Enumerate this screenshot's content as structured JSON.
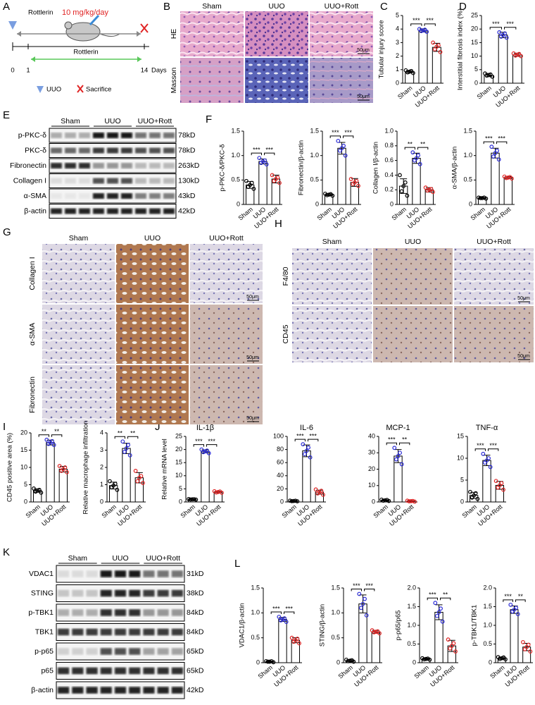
{
  "panels": [
    "A",
    "B",
    "C",
    "D",
    "E",
    "F",
    "G",
    "H",
    "I",
    "J",
    "K",
    "L"
  ],
  "schematic": {
    "drug": "Rottlerin",
    "dose": "10 mg/kg/day",
    "days": [
      "0",
      "1",
      "14"
    ],
    "unit": "Days",
    "bar_label": "Rottlerin",
    "legend": [
      "UUO",
      "Sacrifice"
    ]
  },
  "histology_B": {
    "columns": [
      "Sham",
      "UUO",
      "UUO+Rott"
    ],
    "rows": [
      "HE",
      "Masson"
    ],
    "scale": "50μm"
  },
  "histology_G": {
    "columns": [
      "Sham",
      "UUO",
      "UUO+Rott"
    ],
    "rows": [
      "Collagen I",
      "α-SMA",
      "Fibronectin"
    ],
    "scale": "50μm"
  },
  "histology_H": {
    "columns": [
      "Sham",
      "UUO",
      "UUO+Rott"
    ],
    "rows": [
      "F4/80",
      "CD45"
    ],
    "scale": "50μm"
  },
  "blot_E": {
    "groups": [
      "Sham",
      "UUO",
      "UUO+Rott"
    ],
    "rows": [
      "p-PKC-δ",
      "PKC-δ",
      "Fibronectin",
      "Collagen I",
      "α-SMA",
      "β-actin"
    ],
    "sizes": [
      "78kD",
      "78kD",
      "263kD",
      "130kD",
      "43kD",
      "42kD"
    ]
  },
  "blot_K": {
    "groups": [
      "Sham",
      "UUO",
      "UUO+Rott"
    ],
    "rows": [
      "VDAC1",
      "STING",
      "p-TBK1",
      "TBK1",
      "p-p65",
      "p65",
      "β-actin"
    ],
    "sizes": [
      "31kD",
      "38kD",
      "84kD",
      "84kD",
      "65kD",
      "65kD",
      "42kD"
    ]
  },
  "colors": [
    "#000000",
    "#2b2bd6",
    "#e02424"
  ],
  "chart_data": [
    {
      "type": "bar",
      "ylabel": "Tubular injury score",
      "categories": [
        "Sham",
        "UUO",
        "UUO+Rott"
      ],
      "values": [
        0.85,
        3.9,
        2.65
      ],
      "errors": [
        0.08,
        0.12,
        0.3
      ],
      "points": [
        [
          0.75,
          0.8,
          0.85,
          0.9,
          0.95
        ],
        [
          3.8,
          3.85,
          3.9,
          3.95,
          4.0
        ],
        [
          2.3,
          2.5,
          2.7,
          2.8,
          3.0
        ]
      ],
      "ylim": [
        0,
        5
      ],
      "yticks": [
        0,
        1,
        2,
        3,
        4,
        5
      ],
      "sig": [
        "***",
        "***"
      ]
    },
    {
      "type": "bar",
      "ylabel": "Interstitial fibrosis index (%)",
      "categories": [
        "Sham",
        "UUO",
        "UUO+Rott"
      ],
      "values": [
        3,
        17.8,
        10.5
      ],
      "errors": [
        0.6,
        1,
        0.6
      ],
      "points": [
        [
          2.4,
          2.8,
          3,
          3.2,
          3.6
        ],
        [
          16.8,
          17.2,
          17.8,
          18.4,
          18.8
        ],
        [
          10,
          10.2,
          10.5,
          10.8,
          11
        ]
      ],
      "ylim": [
        0,
        25
      ],
      "yticks": [
        0,
        5,
        10,
        15,
        20,
        25
      ],
      "sig": [
        "***",
        "***"
      ]
    },
    {
      "type": "bar",
      "ylabel": "p-PKC-δ/PKC-δ",
      "categories": [
        "Sham",
        "UUO",
        "UUO+Rott"
      ],
      "values": [
        0.4,
        0.88,
        0.52
      ],
      "errors": [
        0.07,
        0.05,
        0.08
      ],
      "points": [
        [
          0.32,
          0.36,
          0.4,
          0.44,
          0.48
        ],
        [
          0.82,
          0.85,
          0.88,
          0.9,
          0.95
        ],
        [
          0.44,
          0.48,
          0.52,
          0.55,
          0.6
        ]
      ],
      "ylim": [
        0,
        1.5
      ],
      "yticks": [
        0,
        0.5,
        {
          "value": 1,
          "label": "1.0"
        },
        1.5
      ],
      "sig": [
        "***",
        "***"
      ]
    },
    {
      "type": "bar",
      "ylabel": "Fibronectin/β-actin",
      "categories": [
        "Sham",
        "UUO",
        "UUO+Rott"
      ],
      "values": [
        0.2,
        1.15,
        0.45
      ],
      "errors": [
        0.02,
        0.12,
        0.08
      ],
      "points": [
        [
          0.18,
          0.19,
          0.2,
          0.21,
          0.22
        ],
        [
          1.0,
          1.1,
          1.15,
          1.2,
          1.3
        ],
        [
          0.38,
          0.42,
          0.45,
          0.48,
          0.52
        ]
      ],
      "ylim": [
        0,
        1.5
      ],
      "yticks": [
        0,
        0.5,
        {
          "value": 1,
          "label": "1.0"
        },
        1.5
      ],
      "sig": [
        "***",
        "***"
      ]
    },
    {
      "type": "bar",
      "ylabel": "Collagen I/β-actin",
      "categories": [
        "Sham",
        "UUO",
        "UUO+Rott"
      ],
      "values": [
        0.25,
        0.63,
        0.2
      ],
      "errors": [
        0.1,
        0.07,
        0.03
      ],
      "points": [
        [
          0.12,
          0.18,
          0.25,
          0.3,
          0.4
        ],
        [
          0.55,
          0.6,
          0.63,
          0.67,
          0.71
        ],
        [
          0.17,
          0.19,
          0.2,
          0.21,
          0.23
        ]
      ],
      "ylim": [
        0,
        1
      ],
      "yticks": [
        0,
        0.2,
        0.4,
        0.6,
        0.8,
        {
          "value": 1,
          "label": "1.0"
        }
      ],
      "sig": [
        "**",
        "**"
      ]
    },
    {
      "type": "bar",
      "ylabel": "α-SMA/β-actin",
      "categories": [
        "Sham",
        "UUO",
        "UUO+Rott"
      ],
      "values": [
        0.13,
        1.05,
        0.55
      ],
      "errors": [
        0.01,
        0.1,
        0.02
      ],
      "points": [
        [
          0.12,
          0.13,
          0.13,
          0.14,
          0.14
        ],
        [
          0.92,
          0.98,
          1.05,
          1.1,
          1.18
        ],
        [
          0.53,
          0.54,
          0.55,
          0.56,
          0.57
        ]
      ],
      "ylim": [
        0,
        1.5
      ],
      "yticks": [
        0,
        0.5,
        {
          "value": 1,
          "label": "1.0"
        },
        1.5
      ],
      "sig": [
        "***",
        "***"
      ]
    },
    {
      "type": "bar",
      "ylabel": "CD45 positive area (%)",
      "categories": [
        "Sham",
        "UUO",
        "UUO+Rott"
      ],
      "values": [
        3.3,
        17.2,
        9.5
      ],
      "errors": [
        0.5,
        0.7,
        0.8
      ],
      "points": [
        [
          2.7,
          3,
          3.3,
          3.5,
          3.9
        ],
        [
          16.5,
          16.8,
          17.2,
          17.6,
          18
        ],
        [
          8.6,
          9,
          9.5,
          10,
          10.4
        ]
      ],
      "ylim": [
        0,
        20
      ],
      "yticks": [
        0,
        5,
        10,
        15,
        20
      ],
      "sig": [
        "**",
        "**"
      ]
    },
    {
      "type": "bar",
      "ylabel": "Relative macrophage infiltration",
      "categories": [
        "Sham",
        "UUO",
        "UUO+Rott"
      ],
      "values": [
        0.95,
        3.1,
        1.4
      ],
      "errors": [
        0.2,
        0.3,
        0.3
      ],
      "points": [
        [
          0.7,
          0.85,
          0.95,
          1.05,
          1.2
        ],
        [
          2.7,
          2.9,
          3.1,
          3.3,
          3.5
        ],
        [
          1.1,
          1.2,
          1.4,
          1.5,
          1.8
        ]
      ],
      "ylim": [
        0,
        4
      ],
      "yticks": [
        0,
        1,
        2,
        3,
        4
      ],
      "sig": [
        "**",
        "**"
      ]
    },
    {
      "type": "bar",
      "title": "IL-1β",
      "ylabel": "Relative mRNA level",
      "categories": [
        "Sham",
        "UUO",
        "UUO+Rott"
      ],
      "values": [
        1,
        19.3,
        3.8
      ],
      "errors": [
        0.1,
        0.6,
        0.3
      ],
      "points": [
        [
          0.9,
          0.95,
          1,
          1.05,
          1.1
        ],
        [
          18.6,
          19,
          19.3,
          19.6,
          20
        ],
        [
          3.5,
          3.6,
          3.8,
          4,
          4.1
        ]
      ],
      "ylim": [
        0,
        25
      ],
      "yticks": [
        0,
        5,
        10,
        15,
        20,
        25
      ],
      "sig": [
        "***",
        "***"
      ]
    },
    {
      "type": "bar",
      "title": "IL-6",
      "categories": [
        "Sham",
        "UUO",
        "UUO+Rott"
      ],
      "values": [
        1.5,
        78,
        15
      ],
      "errors": [
        0.5,
        9,
        3
      ],
      "points": [
        [
          1,
          1.2,
          1.5,
          1.8,
          2
        ],
        [
          68,
          73,
          78,
          83,
          88
        ],
        [
          11,
          13,
          15,
          17,
          19
        ]
      ],
      "ylim": [
        0,
        100
      ],
      "yticks": [
        0,
        20,
        40,
        60,
        80,
        100
      ],
      "sig": [
        "***",
        "***"
      ]
    },
    {
      "type": "bar",
      "title": "MCP-1",
      "categories": [
        "Sham",
        "UUO",
        "UUO+Rott"
      ],
      "values": [
        1,
        28,
        0.5
      ],
      "errors": [
        0.3,
        4,
        0.3
      ],
      "points": [
        [
          0.6,
          0.8,
          1,
          1.2,
          1.4
        ],
        [
          23,
          26,
          28,
          30,
          33
        ],
        [
          0.2,
          0.4,
          0.5,
          0.6,
          0.8
        ]
      ],
      "ylim": [
        0,
        40
      ],
      "yticks": [
        0,
        10,
        20,
        30,
        40
      ],
      "sig": [
        "***",
        "**"
      ]
    },
    {
      "type": "bar",
      "title": "TNF-α",
      "categories": [
        "Sham",
        "UUO",
        "UUO+Rott"
      ],
      "values": [
        1.5,
        9.5,
        3.8
      ],
      "errors": [
        0.7,
        1.2,
        0.9
      ],
      "points": [
        [
          0.7,
          1,
          1.5,
          2,
          2.3
        ],
        [
          8,
          9,
          9.5,
          10,
          11
        ],
        [
          2.8,
          3.3,
          3.8,
          4.3,
          4.8
        ]
      ],
      "ylim": [
        0,
        15
      ],
      "yticks": [
        0,
        5,
        10,
        15
      ],
      "sig": [
        "***",
        "***"
      ]
    },
    {
      "type": "bar",
      "ylabel": "VDAC1/β-actin",
      "categories": [
        "Sham",
        "UUO",
        "UUO+Rott"
      ],
      "values": [
        0.02,
        0.87,
        0.45
      ],
      "errors": [
        0.01,
        0.04,
        0.05
      ],
      "points": [
        [
          0.01,
          0.02,
          0.02,
          0.03,
          0.03
        ],
        [
          0.82,
          0.85,
          0.87,
          0.89,
          0.92
        ],
        [
          0.39,
          0.42,
          0.45,
          0.48,
          0.5
        ]
      ],
      "ylim": [
        0,
        1.5
      ],
      "yticks": [
        0,
        0.5,
        {
          "value": 1,
          "label": "1.0"
        },
        1.5
      ],
      "sig": [
        "***",
        "***"
      ]
    },
    {
      "type": "bar",
      "ylabel": "STING/β-actin",
      "categories": [
        "Sham",
        "UUO",
        "UUO+Rott"
      ],
      "values": [
        0.04,
        1.18,
        0.62
      ],
      "errors": [
        0.02,
        0.18,
        0.03
      ],
      "points": [
        [
          0.02,
          0.03,
          0.04,
          0.05,
          0.06
        ],
        [
          0.95,
          1.1,
          1.18,
          1.28,
          1.38
        ],
        [
          0.59,
          0.61,
          0.62,
          0.63,
          0.65
        ]
      ],
      "ylim": [
        0,
        1.5
      ],
      "yticks": [
        0,
        0.5,
        {
          "value": 1,
          "label": "1.0"
        },
        1.5
      ],
      "sig": [
        "***",
        "***"
      ]
    },
    {
      "type": "bar",
      "ylabel": "p-p65/p65",
      "categories": [
        "Sham",
        "UUO",
        "UUO+Rott"
      ],
      "values": [
        0.1,
        1.35,
        0.45
      ],
      "errors": [
        0.02,
        0.2,
        0.15
      ],
      "points": [
        [
          0.08,
          0.09,
          0.1,
          0.11,
          0.12
        ],
        [
          1.1,
          1.25,
          1.35,
          1.45,
          1.6
        ],
        [
          0.3,
          0.38,
          0.45,
          0.52,
          0.62
        ]
      ],
      "ylim": [
        0,
        2
      ],
      "yticks": [
        0,
        0.5,
        {
          "value": 1,
          "label": "1.0"
        },
        1.5,
        {
          "value": 2,
          "label": "2.0"
        }
      ],
      "sig": [
        "***",
        "**"
      ]
    },
    {
      "type": "bar",
      "ylabel": "p-TBK1/TBK1",
      "categories": [
        "Sham",
        "UUO",
        "UUO+Rott"
      ],
      "values": [
        0.12,
        1.42,
        0.42
      ],
      "errors": [
        0.03,
        0.1,
        0.1
      ],
      "points": [
        [
          0.09,
          0.1,
          0.12,
          0.14,
          0.15
        ],
        [
          1.3,
          1.37,
          1.42,
          1.47,
          1.55
        ],
        [
          0.3,
          0.36,
          0.42,
          0.48,
          0.55
        ]
      ],
      "ylim": [
        0,
        2
      ],
      "yticks": [
        0,
        0.5,
        {
          "value": 1,
          "label": "1.0"
        },
        1.5,
        {
          "value": 2,
          "label": "2.0"
        }
      ],
      "sig": [
        "***",
        "**"
      ]
    }
  ]
}
